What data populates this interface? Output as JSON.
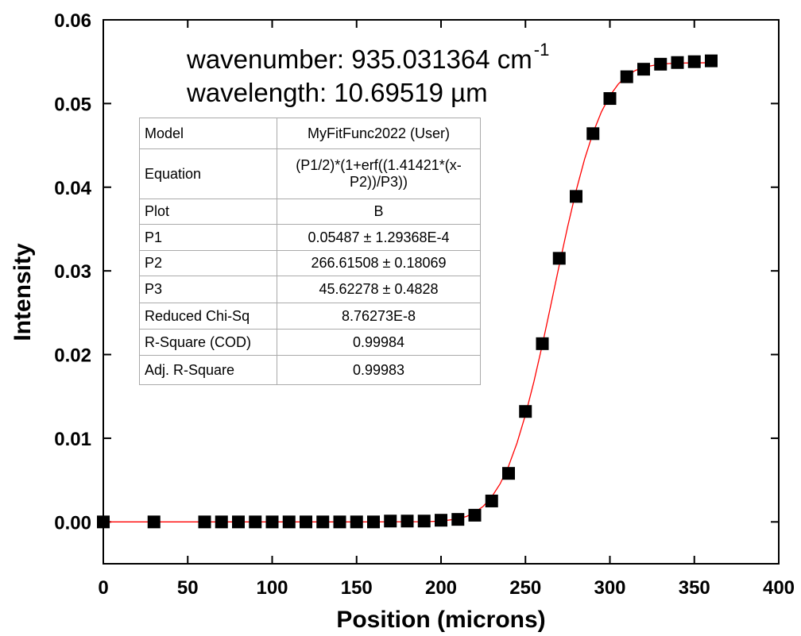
{
  "chart_data": {
    "type": "scatter",
    "xlabel": "Position (microns)",
    "ylabel": "Intensity",
    "xlim": [
      0,
      400
    ],
    "ylim": [
      -0.005,
      0.06
    ],
    "xticks": [
      0,
      50,
      100,
      150,
      200,
      250,
      300,
      350,
      400
    ],
    "yticks": [
      {
        "value": 0,
        "label": "0.00"
      },
      0.01,
      0.02,
      0.03,
      0.04,
      0.05,
      0.06
    ],
    "annotations": [
      "wavenumber: 935.031364 cm",
      "-1",
      "wavelength: 10.69519 µm"
    ],
    "series": [
      {
        "type": "scatter",
        "marker": "square",
        "color": "#000000",
        "x": [
          0,
          30,
          60,
          70,
          80,
          90,
          100,
          110,
          120,
          130,
          140,
          150,
          160,
          170,
          180,
          190,
          200,
          210,
          220,
          230,
          240,
          250,
          260,
          270,
          280,
          290,
          300,
          310,
          320,
          330,
          340,
          350,
          360
        ],
        "values": [
          0,
          0,
          0,
          0,
          0,
          0,
          0,
          0,
          0,
          0,
          0,
          0,
          0,
          0.0001,
          0.0001,
          0.0001,
          0.0002,
          0.0003,
          0.0008,
          0.0025,
          0.0058,
          0.0132,
          0.0213,
          0.0315,
          0.0389,
          0.0464,
          0.0506,
          0.0532,
          0.0541,
          0.0547,
          0.0549,
          0.055,
          0.0551
        ]
      },
      {
        "type": "line",
        "color": "#ff0000",
        "x": [
          0,
          150,
          190,
          200,
          210,
          215,
          220,
          225,
          230,
          235,
          240,
          245,
          250,
          255,
          260,
          265,
          270,
          275,
          280,
          285,
          290,
          295,
          300,
          305,
          310,
          315,
          320,
          330,
          340,
          350,
          360
        ],
        "values": [
          0,
          0,
          2e-05,
          9.6e-05,
          0.000358,
          0.00065,
          0.00113,
          0.00187,
          0.00298,
          0.00455,
          0.00667,
          0.00943,
          0.0128,
          0.01676,
          0.02117,
          0.02589,
          0.03067,
          0.03529,
          0.03958,
          0.04334,
          0.04649,
          0.04901,
          0.05094,
          0.05233,
          0.0533,
          0.05394,
          0.05434,
          0.05472,
          0.05483,
          0.05486,
          0.05487
        ]
      }
    ],
    "table": {
      "rows": [
        [
          "Model",
          "MyFitFunc2022 (User)"
        ],
        [
          "Equation",
          "(P1/2)*(1+erf((1.41421*(x-P2))/P3))"
        ],
        [
          "Plot",
          "B"
        ],
        [
          "P1",
          "0.05487 ± 1.29368E-4"
        ],
        [
          "P2",
          "266.61508 ± 0.18069"
        ],
        [
          "P3",
          "45.62278 ± 0.4828"
        ],
        [
          "Reduced Chi-Sq",
          "8.76273E-8"
        ],
        [
          "R-Square (COD)",
          "0.99984"
        ],
        [
          "Adj. R-Square",
          "0.99983"
        ]
      ]
    }
  }
}
